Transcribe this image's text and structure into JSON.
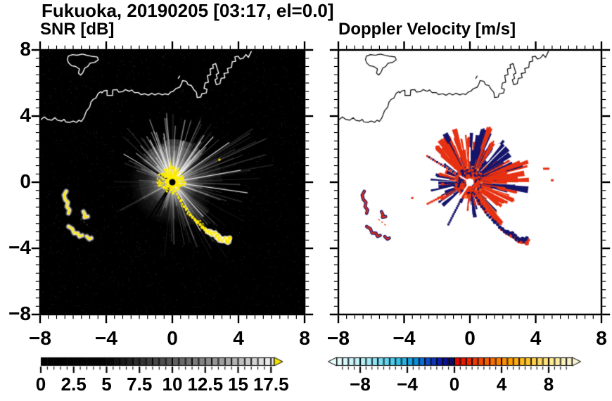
{
  "title": "Fukuoka, 20190205 [03:17, el=0.0]",
  "panels": [
    {
      "label": "SNR [dB]",
      "axis": {
        "x_tick_labels": [
          "−8",
          "−4",
          "0",
          "4",
          "8"
        ],
        "y_tick_labels": [
          "8",
          "4",
          "0",
          "−4",
          "−8"
        ],
        "x_tick_values": [
          -8,
          -4,
          0,
          4,
          8
        ],
        "y_tick_values": [
          8,
          4,
          0,
          -4,
          -8
        ]
      }
    },
    {
      "label": "Doppler Velocity [m/s]",
      "axis": {
        "x_tick_labels": [
          "−8",
          "−4",
          "0",
          "4",
          "8"
        ],
        "y_tick_labels": [],
        "x_tick_values": [
          -8,
          -4,
          0,
          4,
          8
        ],
        "y_tick_values": [
          8,
          4,
          0,
          -4,
          -8
        ]
      }
    }
  ],
  "colorbars": [
    {
      "name": "snr",
      "tick_labels": [
        "0",
        "2.5",
        "5",
        "7.5",
        "10",
        "12.5",
        "15",
        "17.5"
      ],
      "label_values": [
        0,
        2.5,
        5,
        7.5,
        10,
        12.5,
        15,
        17.5
      ],
      "range": [
        0,
        17.75
      ],
      "segment": 0.5,
      "major_step": 2.5,
      "overflow_arrow": "#f2e205",
      "stops": [
        [
          0,
          "#000000"
        ],
        [
          5,
          "#050505"
        ],
        [
          9,
          "#4a4a4a"
        ],
        [
          13,
          "#909090"
        ],
        [
          17.75,
          "#f2f2f2"
        ]
      ]
    },
    {
      "name": "velocity",
      "tick_labels": [
        "−8",
        "−4",
        "0",
        "4",
        "8"
      ],
      "label_values": [
        -8,
        -4,
        0,
        4,
        8
      ],
      "range": [
        -10,
        10
      ],
      "segment": 0.5,
      "major_step": 4,
      "stops_neg": [
        [
          -10,
          "#e9fdfd"
        ],
        [
          -7.2,
          "#a5ecf6"
        ],
        [
          -5,
          "#40c8ea"
        ],
        [
          -3.4,
          "#0a98dc"
        ],
        [
          -2.2,
          "#1048c8"
        ],
        [
          -1,
          "#0c12a0"
        ],
        [
          0,
          "#0a0a50"
        ]
      ],
      "stops_pos": [
        [
          0,
          "#dc0000"
        ],
        [
          1.8,
          "#f03c00"
        ],
        [
          3.5,
          "#fc7800"
        ],
        [
          5,
          "#ffa800"
        ],
        [
          6.8,
          "#ffd24a"
        ],
        [
          8.5,
          "#ffeda0"
        ],
        [
          10,
          "#f8f3d2"
        ]
      ]
    }
  ],
  "chart_data": {
    "type": "heatmap",
    "subtype": "dual_radar_ppi",
    "station": "Fukuoka",
    "date": "20190205",
    "time": "03:17",
    "elevation_deg": 0.0,
    "x_range": [
      -8,
      8
    ],
    "y_range": [
      -8,
      8
    ],
    "major_tick_step": 4,
    "minor_tick_step": 0.5,
    "radar_center": [
      0,
      0
    ],
    "panel_meta": [
      {
        "title": "SNR [dB]",
        "background": "#000000",
        "colormap": "grayscale 0-17.75 dB, overflow yellow",
        "coast_color": "#ffffff"
      },
      {
        "title": "Doppler Velocity [m/s]",
        "background": "#ffffff",
        "colormap": "cyan-blue-navy negative / red-orange-yellow positive, -10..10 m/s",
        "coast_color": "#000000"
      }
    ],
    "colors": {
      "yellow": "#ffe800",
      "navy": "#15156b",
      "red": "#e73112",
      "orange": "#f5792f",
      "white": "#ffffff"
    },
    "coastline": {
      "mainland": [
        [
          -8.0,
          3.75
        ],
        [
          -7.75,
          3.95
        ],
        [
          -7.55,
          3.8
        ],
        [
          -7.3,
          3.75
        ],
        [
          -7.1,
          3.9
        ],
        [
          -6.95,
          3.75
        ],
        [
          -6.7,
          3.7
        ],
        [
          -6.55,
          3.8
        ],
        [
          -6.45,
          3.65
        ],
        [
          -6.2,
          3.62
        ],
        [
          -6.0,
          3.7
        ],
        [
          -5.8,
          3.62
        ],
        [
          -5.65,
          3.75
        ],
        [
          -5.5,
          3.68
        ],
        [
          -5.35,
          3.9
        ],
        [
          -5.2,
          4.3
        ],
        [
          -5.0,
          4.55
        ],
        [
          -4.92,
          4.85
        ],
        [
          -4.8,
          5.0
        ],
        [
          -4.62,
          5.1
        ],
        [
          -4.48,
          5.38
        ],
        [
          -4.32,
          5.48
        ],
        [
          -4.26,
          5.4
        ],
        [
          -4.15,
          5.52
        ],
        [
          -3.95,
          5.56
        ],
        [
          -3.95,
          5.25
        ],
        [
          -3.62,
          5.25
        ],
        [
          -3.6,
          5.58
        ],
        [
          -3.35,
          5.6
        ],
        [
          -3.25,
          5.45
        ],
        [
          -3.0,
          5.48
        ],
        [
          -2.85,
          5.6
        ],
        [
          -2.6,
          5.5
        ],
        [
          -2.45,
          5.58
        ],
        [
          -2.3,
          5.42
        ],
        [
          -2.05,
          5.42
        ],
        [
          -1.9,
          5.3
        ],
        [
          -1.65,
          5.35
        ],
        [
          -1.45,
          5.26
        ],
        [
          -1.25,
          5.38
        ],
        [
          -1.05,
          5.28
        ],
        [
          -0.85,
          5.38
        ],
        [
          -0.6,
          5.28
        ],
        [
          -0.45,
          5.35
        ],
        [
          -0.25,
          5.3
        ],
        [
          -0.1,
          5.45
        ],
        [
          0.05,
          5.5
        ],
        [
          0.2,
          5.65
        ],
        [
          0.45,
          5.75
        ],
        [
          0.55,
          5.95
        ],
        [
          0.62,
          6.15
        ],
        [
          0.85,
          6.1
        ],
        [
          0.95,
          5.9
        ],
        [
          1.15,
          5.85
        ],
        [
          1.3,
          5.6
        ],
        [
          1.45,
          5.45
        ],
        [
          1.5,
          5.12
        ],
        [
          1.72,
          5.15
        ],
        [
          1.78,
          5.35
        ],
        [
          2.05,
          5.4
        ],
        [
          2.1,
          5.62
        ],
        [
          1.92,
          5.68
        ],
        [
          1.98,
          6.0
        ],
        [
          2.18,
          6.05
        ],
        [
          2.12,
          6.45
        ],
        [
          2.32,
          6.5
        ],
        [
          2.28,
          6.85
        ],
        [
          2.48,
          6.9
        ],
        [
          2.44,
          7.1
        ],
        [
          2.62,
          7.18
        ],
        [
          2.8,
          6.6
        ],
        [
          2.65,
          6.52
        ],
        [
          2.72,
          6.28
        ],
        [
          2.58,
          6.2
        ],
        [
          2.66,
          5.9
        ],
        [
          2.88,
          5.96
        ],
        [
          2.95,
          6.28
        ],
        [
          3.18,
          6.32
        ],
        [
          3.12,
          6.58
        ],
        [
          3.38,
          6.62
        ],
        [
          3.33,
          6.88
        ],
        [
          3.58,
          6.94
        ],
        [
          3.62,
          7.28
        ],
        [
          3.83,
          7.32
        ],
        [
          3.78,
          7.58
        ],
        [
          3.98,
          7.62
        ],
        [
          4.1,
          7.45
        ],
        [
          4.28,
          7.5
        ],
        [
          4.45,
          7.72
        ],
        [
          4.6,
          7.55
        ],
        [
          4.78,
          7.92
        ]
      ],
      "island": [
        [
          -6.35,
          7.42
        ],
        [
          -6.3,
          7.62
        ],
        [
          -6.05,
          7.72
        ],
        [
          -5.75,
          7.68
        ],
        [
          -5.45,
          7.75
        ],
        [
          -5.18,
          7.68
        ],
        [
          -4.9,
          7.62
        ],
        [
          -4.55,
          7.58
        ],
        [
          -4.48,
          7.4
        ],
        [
          -4.7,
          7.25
        ],
        [
          -4.98,
          7.2
        ],
        [
          -5.12,
          7.0
        ],
        [
          -5.3,
          6.9
        ],
        [
          -5.42,
          6.62
        ],
        [
          -5.55,
          6.48
        ],
        [
          -5.68,
          6.6
        ],
        [
          -5.62,
          6.85
        ],
        [
          -5.85,
          7.0
        ],
        [
          -6.1,
          7.05
        ],
        [
          -6.28,
          7.22
        ],
        [
          -6.35,
          7.42
        ]
      ],
      "islet": [
        [
          0.36,
          6.28
        ],
        [
          0.44,
          6.42
        ]
      ]
    },
    "snr_features": {
      "ray_sectors": [
        {
          "a0": 2,
          "a1": 38,
          "n": 26,
          "rmin": 1.2,
          "rmax": 6.8,
          "amin": 0.04,
          "amax": 0.22
        },
        {
          "a0": 38,
          "a1": 88,
          "n": 36,
          "rmin": 1.0,
          "rmax": 4.6,
          "amin": 0.1,
          "amax": 0.55
        },
        {
          "a0": 88,
          "a1": 146,
          "n": 38,
          "rmin": 1.0,
          "rmax": 4.3,
          "amin": 0.1,
          "amax": 0.55
        },
        {
          "a0": 146,
          "a1": 178,
          "n": 12,
          "rmin": 0.8,
          "rmax": 3.2,
          "amin": 0.05,
          "amax": 0.3
        },
        {
          "a0": 178,
          "a1": 212,
          "n": 14,
          "rmin": 0.8,
          "rmax": 4.0,
          "amin": 0.04,
          "amax": 0.2
        },
        {
          "a0": 212,
          "a1": 248,
          "n": 6,
          "rmin": 0.5,
          "rmax": 1.8,
          "amin": 0.04,
          "amax": 0.15
        },
        {
          "a0": 248,
          "a1": 262,
          "n": 8,
          "rmin": 0.8,
          "rmax": 2.2,
          "amin": 0.06,
          "amax": 0.25
        },
        {
          "a0": 262,
          "a1": 330,
          "n": 32,
          "rmin": 1.0,
          "rmax": 5.8,
          "amin": 0.05,
          "amax": 0.3
        },
        {
          "a0": 330,
          "a1": 360,
          "n": 16,
          "rmin": 1.0,
          "rmax": 5.0,
          "amin": 0.04,
          "amax": 0.25
        }
      ],
      "bright_rays": [
        {
          "a": 150,
          "r": 3.4
        },
        {
          "a": 55,
          "r": 3.0
        },
        {
          "a": 75,
          "r": 2.6
        },
        {
          "a": 100,
          "r": 3.0
        },
        {
          "a": 118,
          "r": 2.9
        },
        {
          "a": 48,
          "r": 3.7
        },
        {
          "a": 35,
          "r": 4.2
        },
        {
          "a": 10,
          "r": 4.2
        },
        {
          "a": 352,
          "r": 4.6
        },
        {
          "a": 300,
          "r": 3.4
        },
        {
          "a": 312,
          "r": 2.8
        }
      ],
      "glow_wedges": [
        {
          "a0": 40,
          "a1": 145,
          "r": 2.2,
          "alpha": 0.1
        },
        {
          "a0": 62,
          "a1": 96,
          "r": 2.6,
          "alpha": 0.2
        },
        {
          "a0": 100,
          "a1": 130,
          "r": 2.4,
          "alpha": 0.16
        },
        {
          "a0": 285,
          "a1": 325,
          "r": 2.8,
          "alpha": 0.07
        },
        {
          "a0": 180,
          "a1": 215,
          "r": 2.0,
          "alpha": 0.06
        },
        {
          "a0": 0,
          "a1": 30,
          "r": 3.0,
          "alpha": 0.05
        }
      ],
      "yellow_spikes": [
        {
          "a": 95,
          "len": 1.5
        },
        {
          "a": 80,
          "len": 1.3
        },
        {
          "a": 70,
          "len": 1.1
        },
        {
          "a": 108,
          "len": 1.2
        },
        {
          "a": 60,
          "len": 0.9
        },
        {
          "a": 120,
          "len": 0.9
        },
        {
          "a": 0,
          "len": 0.8
        },
        {
          "a": 30,
          "len": 0.7
        },
        {
          "a": 135,
          "len": 0.8
        },
        {
          "a": 160,
          "len": 0.6
        },
        {
          "a": 190,
          "len": 0.5
        },
        {
          "a": 210,
          "len": 0.5
        },
        {
          "a": 340,
          "len": 0.6
        }
      ],
      "black_rays": [
        {
          "a": 148.5,
          "r": 3.4
        },
        {
          "a": 237,
          "r": 3.1
        },
        {
          "a": 243,
          "r": 2.2
        }
      ],
      "extra_dots": [
        [
          2.78,
          1.42
        ]
      ]
    },
    "velocity_features": {
      "sectors": [
        {
          "a0": 86,
          "a1": 138,
          "n": 62,
          "rmin": 0.3,
          "rmax": 3.6,
          "red": 0.8,
          "navy": 0.2,
          "orange": 0
        },
        {
          "a0": 138,
          "a1": 175,
          "n": 20,
          "rmin": 0.2,
          "rmax": 2.2,
          "red": 0.55,
          "navy": 0.45,
          "orange": 0
        },
        {
          "a0": 60,
          "a1": 86,
          "n": 32,
          "rmin": 0.3,
          "rmax": 3.6,
          "red": 0.45,
          "navy": 0.55,
          "orange": 0
        },
        {
          "a0": 22,
          "a1": 60,
          "n": 48,
          "rmin": 0.3,
          "rmax": 3.3,
          "red": 0.35,
          "navy": 0.65,
          "orange": 0
        },
        {
          "a0": -8,
          "a1": 22,
          "n": 42,
          "rmin": 0.3,
          "rmax": 4.0,
          "red": 0.78,
          "navy": 0.22,
          "orange": 0
        },
        {
          "a0": -65,
          "a1": -8,
          "n": 58,
          "rmin": 0.3,
          "rmax": 3.2,
          "red": 0.8,
          "navy": 0.05,
          "orange": 0.15
        },
        {
          "a0": -95,
          "a1": -65,
          "n": 26,
          "rmin": 0.3,
          "rmax": 2.2,
          "red": 0.7,
          "navy": 0.3,
          "orange": 0
        },
        {
          "a0": 175,
          "a1": 222,
          "n": 36,
          "rmin": 0.2,
          "rmax": 2.6,
          "red": 0.25,
          "navy": 0.75,
          "orange": 0
        },
        {
          "a0": 222,
          "a1": 250,
          "n": 10,
          "rmin": 0.2,
          "rmax": 1.4,
          "red": 0.4,
          "navy": 0.6,
          "orange": 0
        }
      ],
      "white_slashes": [
        {
          "a": 148.5,
          "r0": 0.25,
          "r1": 2.2,
          "w": 2
        },
        {
          "a": 237,
          "r0": 0.25,
          "r1": 2.8,
          "w": 2.5
        },
        {
          "a": 52,
          "r0": 1.7,
          "r1": 2.9,
          "w": 4
        },
        {
          "a": 90,
          "r0": 1.3,
          "r1": 2.1,
          "w": 2
        }
      ],
      "dotted_rays": [
        {
          "a": 148.5,
          "r0": 0.8,
          "r1": 3.1,
          "mode": "mix"
        },
        {
          "a": 207,
          "r0": 1.9,
          "r1": 2.9,
          "mode": "red"
        },
        {
          "a": 243,
          "r0": 1.2,
          "r1": 3.0,
          "mode": "navy"
        }
      ],
      "extras": [
        {
          "x": 4.45,
          "y": 0.88,
          "w": 9,
          "h": 3,
          "c": "red"
        },
        {
          "x": -3.57,
          "y": -0.89,
          "w": 3,
          "h": 3,
          "c": "red"
        },
        {
          "x": 4.92,
          "y": 0.18,
          "w": 4,
          "h": 3,
          "c": "red"
        }
      ]
    },
    "chain": [
      [
        0.28,
        -0.72,
        3
      ],
      [
        0.38,
        -0.95,
        3
      ],
      [
        0.52,
        -1.12,
        4
      ],
      [
        0.6,
        -1.32,
        3
      ],
      [
        0.72,
        -1.48,
        4
      ],
      [
        0.85,
        -1.62,
        4
      ],
      [
        0.95,
        -1.82,
        3
      ],
      [
        1.08,
        -1.98,
        4
      ],
      [
        1.22,
        -2.12,
        4
      ],
      [
        1.38,
        -2.28,
        4
      ],
      [
        1.52,
        -2.42,
        5
      ],
      [
        1.68,
        -2.56,
        4
      ],
      [
        1.82,
        -2.72,
        5
      ],
      [
        1.98,
        -2.84,
        5
      ],
      [
        2.12,
        -2.98,
        5
      ],
      [
        2.28,
        -3.02,
        6
      ],
      [
        2.42,
        -3.12,
        6
      ],
      [
        2.58,
        -3.08,
        5
      ],
      [
        2.72,
        -3.28,
        7
      ],
      [
        2.88,
        -3.44,
        7
      ],
      [
        3.05,
        -3.5,
        6
      ],
      [
        3.2,
        -3.44,
        6
      ],
      [
        3.35,
        -3.56,
        7
      ],
      [
        3.46,
        -3.38,
        5
      ]
    ],
    "squiggles": [
      [
        [
          -6.42,
          -0.55
        ],
        [
          -6.55,
          -0.78
        ],
        [
          -6.48,
          -1.05
        ],
        [
          -6.32,
          -1.22
        ],
        [
          -6.38,
          -1.48
        ],
        [
          -6.22,
          -1.68
        ],
        [
          -6.28,
          -1.88
        ]
      ],
      [
        [
          -5.38,
          -1.78
        ],
        [
          -5.28,
          -1.98
        ],
        [
          -5.32,
          -2.12
        ],
        [
          -5.12,
          -2.08
        ]
      ],
      [
        [
          -6.28,
          -2.68
        ],
        [
          -6.05,
          -2.82
        ],
        [
          -5.95,
          -3.08
        ],
        [
          -5.72,
          -3.08
        ],
        [
          -5.62,
          -3.28
        ],
        [
          -5.45,
          -3.22
        ]
      ],
      [
        [
          -5.18,
          -3.28
        ],
        [
          -5.02,
          -3.44
        ],
        [
          -4.9,
          -3.38
        ]
      ]
    ],
    "dotted_link": [
      [
        -5.55,
        -2.25
      ],
      [
        -5.1,
        -2.62
      ]
    ]
  }
}
